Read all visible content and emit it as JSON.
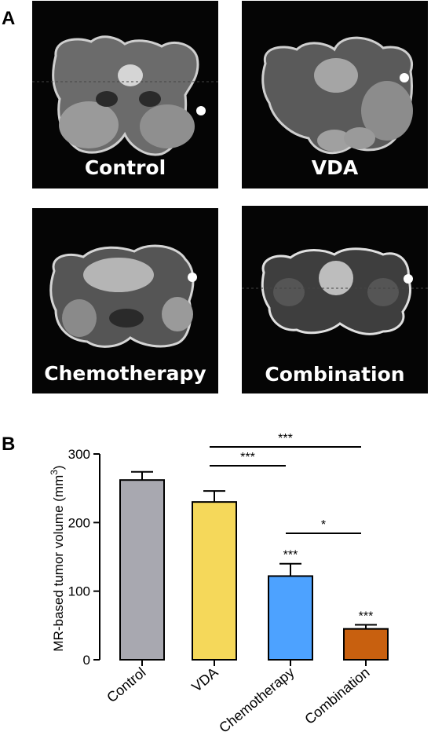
{
  "panel_a": {
    "letter": "A",
    "images": [
      {
        "label": "Control"
      },
      {
        "label": "VDA"
      },
      {
        "label": "Chemotherapy"
      },
      {
        "label": "Combination"
      }
    ]
  },
  "panel_b": {
    "letter": "B"
  },
  "chart_data": {
    "type": "bar",
    "categories": [
      "Control",
      "VDA",
      "Chemotherapy",
      "Combination"
    ],
    "values": [
      262,
      230,
      122,
      45
    ],
    "errors": [
      12,
      16,
      18,
      6
    ],
    "colors": [
      "#a8a8b0",
      "#f5d85a",
      "#4da2ff",
      "#c8600f"
    ],
    "title": "",
    "xlabel": "",
    "ylabel": "MR-based tumor volume (mm",
    "ylabel_superscript": "3",
    "ylabel_suffix": ")",
    "ylim": [
      0,
      300
    ],
    "yticks": [
      "0",
      "100",
      "200",
      "300"
    ],
    "grid": false,
    "bar_annotations": [
      "",
      "",
      "***",
      "***"
    ],
    "comparisons": [
      {
        "from": "VDA",
        "to": "Combination",
        "label": "***"
      },
      {
        "from": "VDA",
        "to": "Chemotherapy",
        "label": "***"
      },
      {
        "from": "Chemotherapy",
        "to": "Combination",
        "label": "*"
      }
    ]
  }
}
